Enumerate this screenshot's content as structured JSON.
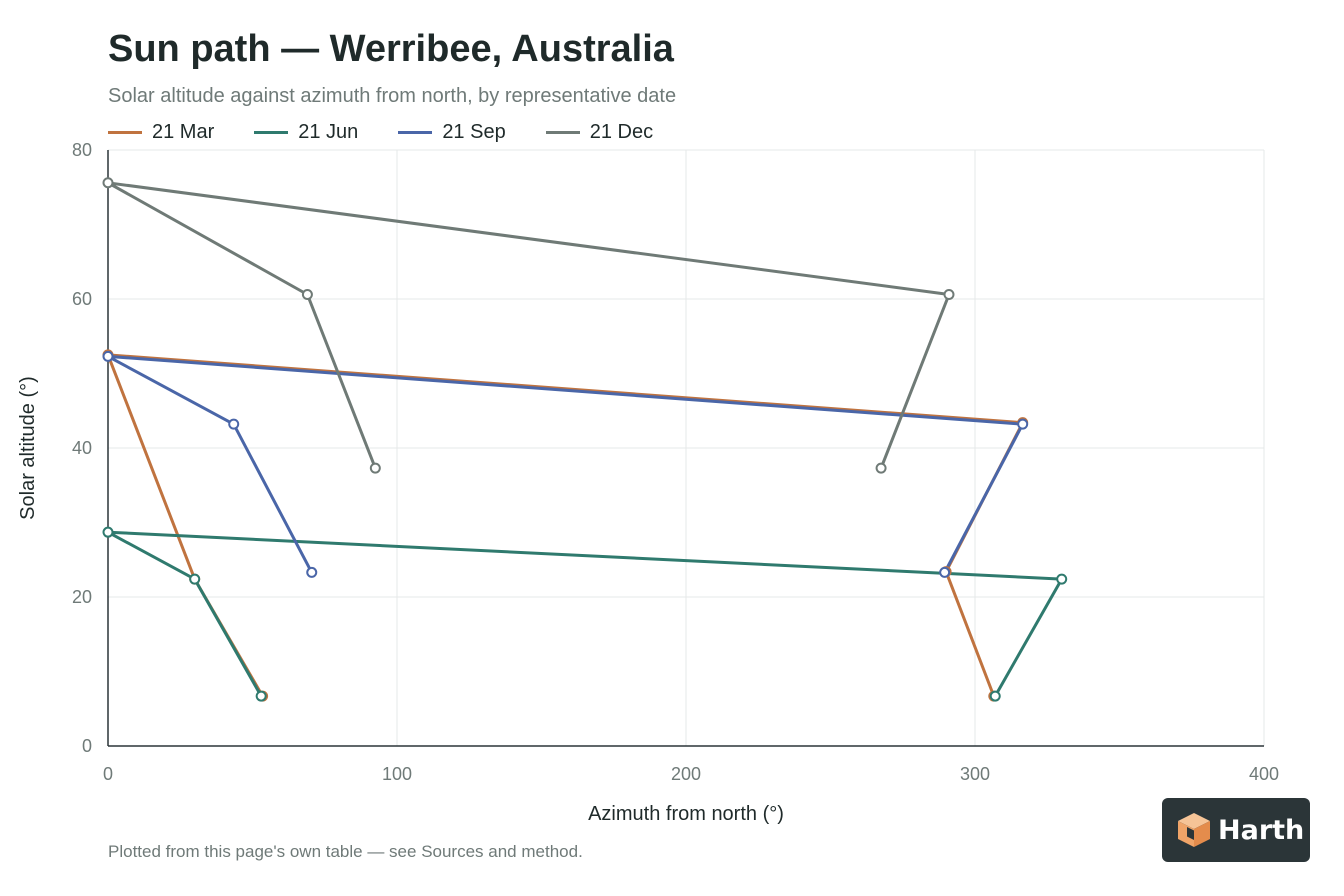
{
  "chart_data": {
    "type": "line",
    "title": "Sun path — Werribee, Australia",
    "subtitle": "Solar altitude against azimuth from north, by representative date",
    "xlabel": "Azimuth from north (°)",
    "ylabel": "Solar altitude (°)",
    "xlim": [
      0,
      400
    ],
    "ylim": [
      0,
      80
    ],
    "xticks": [
      "0",
      "100",
      "200",
      "300",
      "400"
    ],
    "yticks": [
      "0",
      "20",
      "40",
      "60",
      "80"
    ],
    "grid": true,
    "legend_position": "top-left",
    "series": [
      {
        "name": "21 Mar",
        "color": "#c0733f",
        "points": [
          [
            53.5,
            6.7
          ],
          [
            30,
            22.4
          ],
          [
            0,
            52.5
          ],
          [
            316.5,
            43.4
          ],
          [
            290,
            23.4
          ],
          [
            306.5,
            6.7
          ]
        ]
      },
      {
        "name": "21 Jun",
        "color": "#2f7a6e",
        "points": [
          [
            53,
            6.7
          ],
          [
            30,
            22.4
          ],
          [
            0,
            28.7
          ],
          [
            330,
            22.4
          ],
          [
            307,
            6.7
          ]
        ]
      },
      {
        "name": "21 Sep",
        "color": "#4a66a8",
        "points": [
          [
            70.5,
            23.3
          ],
          [
            43.5,
            43.2
          ],
          [
            0,
            52.3
          ],
          [
            316.5,
            43.2
          ],
          [
            289.5,
            23.3
          ]
        ]
      },
      {
        "name": "21 Dec",
        "color": "#6f7a76",
        "points": [
          [
            92.5,
            37.3
          ],
          [
            69,
            60.6
          ],
          [
            0,
            75.6
          ],
          [
            291,
            60.6
          ],
          [
            267.5,
            37.3
          ]
        ]
      }
    ]
  },
  "footer": {
    "note": "Plotted from this page's own table — see Sources and method."
  },
  "brand": {
    "name": "Harth",
    "icon": "cube-logo-icon"
  }
}
